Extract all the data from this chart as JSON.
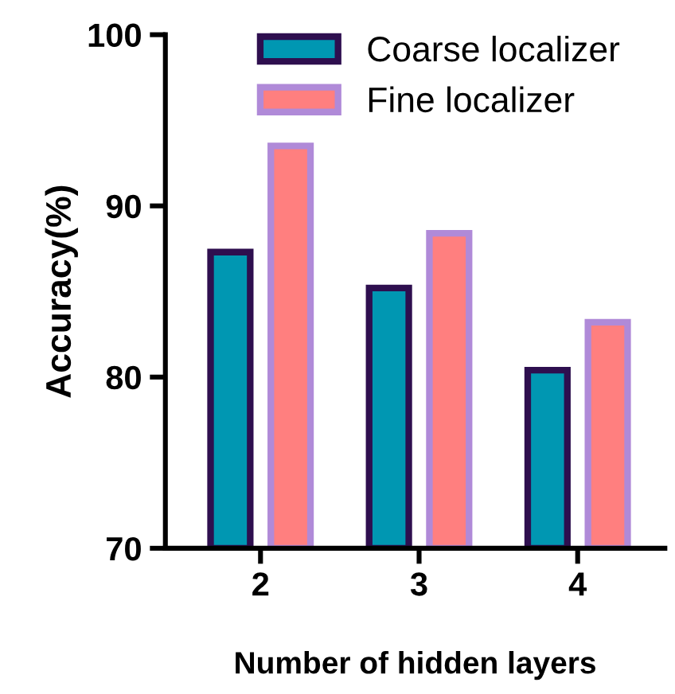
{
  "chart_data": {
    "type": "bar",
    "xlabel": "Number of hidden layers",
    "ylabel": "Accuracy(%)",
    "categories": [
      "2",
      "3",
      "4"
    ],
    "series": [
      {
        "name": "Coarse localizer",
        "color": "#0097b2",
        "values": [
          87.3,
          85.2,
          80.4
        ]
      },
      {
        "name": "Fine localizer",
        "color": "#ff7f7f",
        "values": [
          93.5,
          88.4,
          83.2
        ]
      }
    ],
    "ylim": [
      70,
      100
    ],
    "yticks": [
      70,
      80,
      90,
      100
    ],
    "grid": false,
    "legend": "top"
  }
}
